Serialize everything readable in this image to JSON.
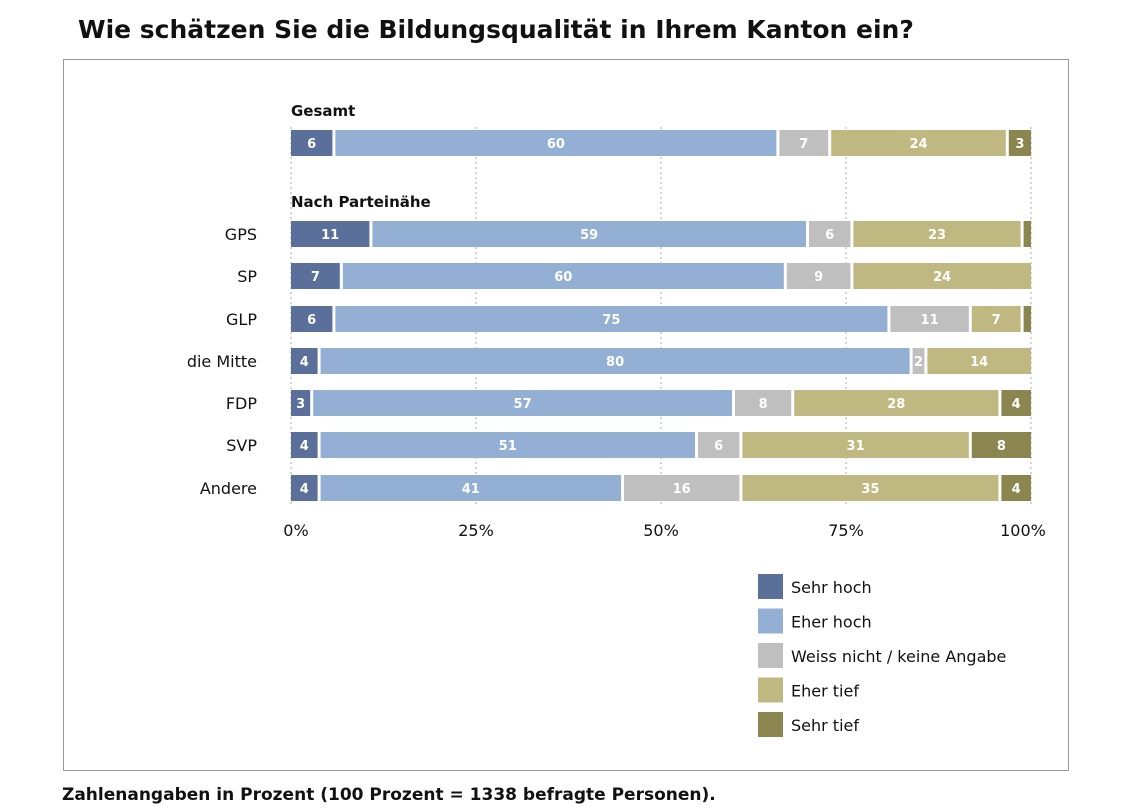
{
  "chart_data": {
    "type": "bar",
    "orientation": "horizontal-stacked-100",
    "title": "Wie schätzen Sie die Bildungsqualität in Ihrem Kanton ein?",
    "footnote": "Zahlenangaben in Prozent (100 Prozent = 1338 befragte Personen).",
    "xlim": [
      0,
      100
    ],
    "xticks": [
      "0%",
      "25%",
      "50%",
      "75%",
      "100%"
    ],
    "grid": true,
    "legend_position": "bottom-right",
    "series": [
      {
        "name": "Sehr hoch",
        "color": "#5a6f9a"
      },
      {
        "name": "Eher hoch",
        "color": "#93afd4"
      },
      {
        "name": "Weiss nicht / keine Angabe",
        "color": "#bfbfbf"
      },
      {
        "name": "Eher tief",
        "color": "#bfb880"
      },
      {
        "name": "Sehr tief",
        "color": "#8b8650"
      }
    ],
    "groups": [
      {
        "heading": "Gesamt",
        "rows": [
          {
            "label": "",
            "values": [
              6,
              60,
              7,
              24,
              3
            ]
          }
        ]
      },
      {
        "heading": "Nach Parteinähe",
        "rows": [
          {
            "label": "GPS",
            "values": [
              11,
              59,
              6,
              23,
              1
            ]
          },
          {
            "label": "SP",
            "values": [
              7,
              60,
              9,
              24,
              0
            ]
          },
          {
            "label": "GLP",
            "values": [
              6,
              75,
              11,
              7,
              1
            ]
          },
          {
            "label": "die Mitte",
            "values": [
              4,
              80,
              2,
              14,
              0
            ]
          },
          {
            "label": "FDP",
            "values": [
              3,
              57,
              8,
              28,
              4
            ]
          },
          {
            "label": "SVP",
            "values": [
              4,
              51,
              6,
              31,
              8
            ]
          },
          {
            "label": "Andere",
            "values": [
              4,
              41,
              16,
              35,
              4
            ]
          }
        ]
      }
    ]
  }
}
